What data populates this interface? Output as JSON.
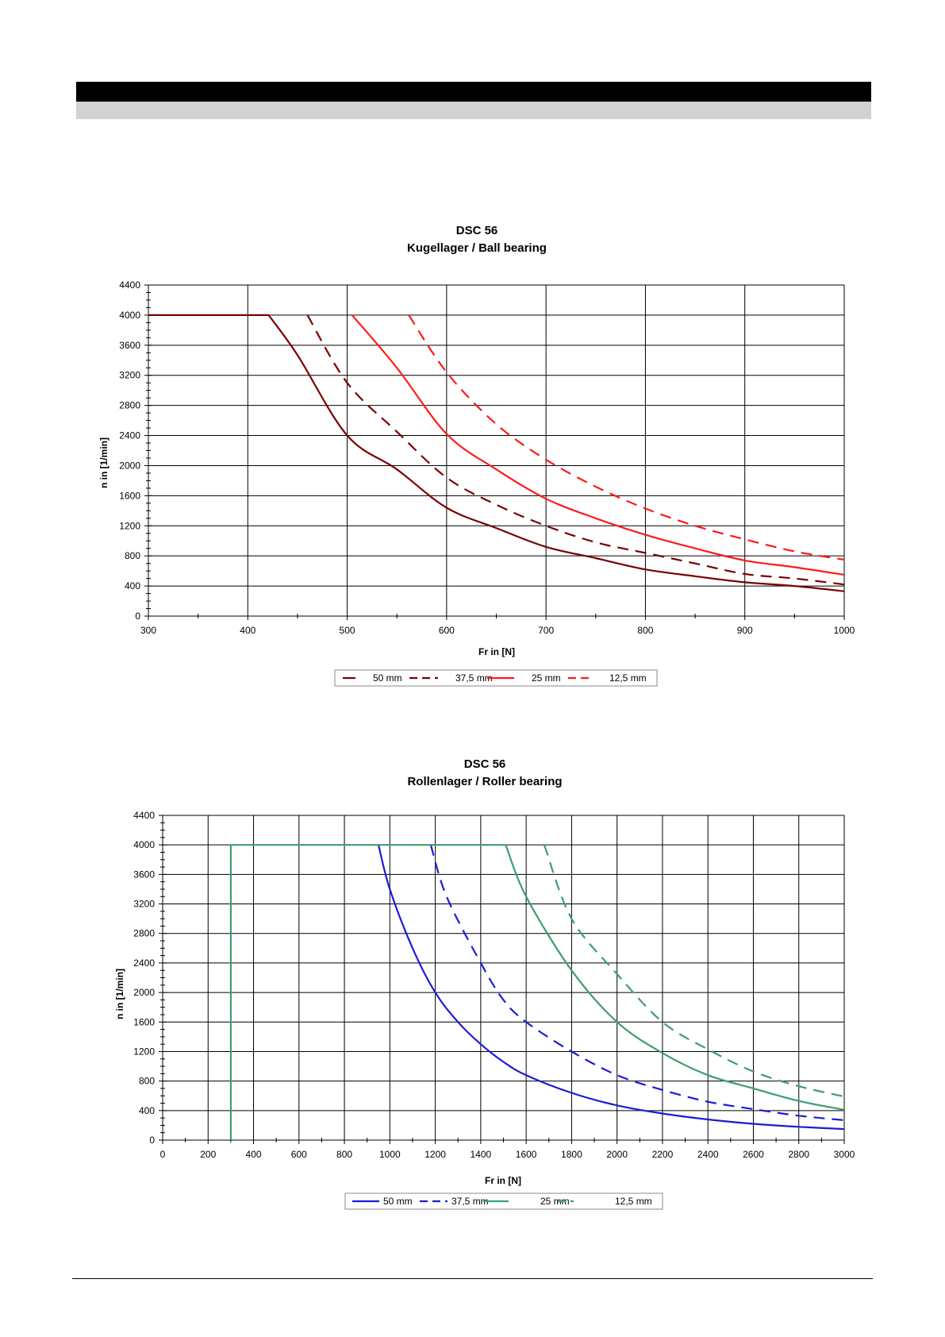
{
  "chart_data": [
    {
      "type": "line",
      "title": "DSC 56",
      "subtitle": "Kugellager / Ball bearing",
      "xlabel": "Fr in [N]",
      "ylabel": "n in [1/min]",
      "xlim": [
        300,
        1000
      ],
      "ylim": [
        0,
        4400
      ],
      "xticks": [
        300,
        400,
        500,
        600,
        700,
        800,
        900,
        1000
      ],
      "yticks": [
        0,
        400,
        800,
        1200,
        1600,
        2000,
        2400,
        2800,
        3200,
        3600,
        4000,
        4400
      ],
      "grid": true,
      "legend_position": "bottom",
      "series": [
        {
          "name": "50 mm",
          "color": "#7a0000",
          "dash": false,
          "points": [
            [
              300,
              4000
            ],
            [
              421,
              4000
            ],
            [
              450,
              3470
            ],
            [
              500,
              2400
            ],
            [
              550,
              1950
            ],
            [
              600,
              1440
            ],
            [
              650,
              1170
            ],
            [
              700,
              920
            ],
            [
              750,
              770
            ],
            [
              800,
              620
            ],
            [
              850,
              530
            ],
            [
              900,
              450
            ],
            [
              950,
              400
            ],
            [
              1000,
              330
            ]
          ]
        },
        {
          "name": "37,5 mm",
          "color": "#7a0000",
          "dash": true,
          "points": [
            [
              460,
              4000
            ],
            [
              500,
              3100
            ],
            [
              550,
              2450
            ],
            [
              600,
              1840
            ],
            [
              650,
              1480
            ],
            [
              700,
              1200
            ],
            [
              750,
              980
            ],
            [
              800,
              840
            ],
            [
              850,
              700
            ],
            [
              900,
              560
            ],
            [
              950,
              500
            ],
            [
              1000,
              420
            ]
          ]
        },
        {
          "name": "25 mm",
          "color": "#ff1a1a",
          "dash": false,
          "points": [
            [
              505,
              4000
            ],
            [
              550,
              3300
            ],
            [
              600,
              2420
            ],
            [
              650,
              1950
            ],
            [
              700,
              1560
            ],
            [
              750,
              1300
            ],
            [
              800,
              1080
            ],
            [
              850,
              900
            ],
            [
              900,
              740
            ],
            [
              950,
              650
            ],
            [
              1000,
              550
            ]
          ]
        },
        {
          "name": "12,5 mm",
          "color": "#ff1a1a",
          "dash": true,
          "points": [
            [
              562,
              4000
            ],
            [
              600,
              3240
            ],
            [
              650,
              2550
            ],
            [
              700,
              2080
            ],
            [
              750,
              1720
            ],
            [
              800,
              1430
            ],
            [
              850,
              1200
            ],
            [
              900,
              1020
            ],
            [
              950,
              860
            ],
            [
              1000,
              750
            ]
          ]
        }
      ]
    },
    {
      "type": "line",
      "title": "DSC 56",
      "subtitle": "Rollenlager / Roller bearing",
      "xlabel": "Fr in [N]",
      "ylabel": "n in [1/min]",
      "xlim": [
        0,
        3000
      ],
      "ylim": [
        0,
        4400
      ],
      "xticks": [
        0,
        200,
        400,
        600,
        800,
        1000,
        1200,
        1400,
        1600,
        1800,
        2000,
        2200,
        2400,
        2600,
        2800,
        3000
      ],
      "yticks": [
        0,
        400,
        800,
        1200,
        1600,
        2000,
        2400,
        2800,
        3200,
        3600,
        4000,
        4400
      ],
      "grid": true,
      "legend_position": "bottom",
      "series": [
        {
          "name": "50 mm",
          "color": "#1c1cd8",
          "dash": false,
          "points": [
            [
              950,
              4000
            ],
            [
              1000,
              3400
            ],
            [
              1100,
              2600
            ],
            [
              1200,
              2000
            ],
            [
              1300,
              1600
            ],
            [
              1400,
              1300
            ],
            [
              1500,
              1060
            ],
            [
              1600,
              880
            ],
            [
              1800,
              640
            ],
            [
              2000,
              470
            ],
            [
              2200,
              360
            ],
            [
              2400,
              280
            ],
            [
              2600,
              220
            ],
            [
              2800,
              180
            ],
            [
              3000,
              150
            ]
          ]
        },
        {
          "name": "37,5 mm",
          "color": "#1c1cd8",
          "dash": true,
          "points": [
            [
              1180,
              4000
            ],
            [
              1250,
              3300
            ],
            [
              1400,
              2400
            ],
            [
              1500,
              1900
            ],
            [
              1600,
              1600
            ],
            [
              1800,
              1200
            ],
            [
              2000,
              880
            ],
            [
              2200,
              680
            ],
            [
              2400,
              520
            ],
            [
              2600,
              420
            ],
            [
              2800,
              330
            ],
            [
              3000,
              270
            ]
          ]
        },
        {
          "name": "25 mm",
          "color": "#3f9e6e",
          "dash": false,
          "points": [
            [
              300,
              0
            ],
            [
              300,
              4000
            ],
            [
              1510,
              4000
            ],
            [
              1600,
              3300
            ],
            [
              1800,
              2300
            ],
            [
              2000,
              1600
            ],
            [
              2200,
              1180
            ],
            [
              2400,
              880
            ],
            [
              2600,
              700
            ],
            [
              2800,
              530
            ],
            [
              3000,
              410
            ]
          ]
        },
        {
          "name": "12,5 mm",
          "color": "#3f9e6e",
          "dash": true,
          "points": [
            [
              1680,
              4000
            ],
            [
              1800,
              3000
            ],
            [
              2000,
              2250
            ],
            [
              2200,
              1600
            ],
            [
              2400,
              1230
            ],
            [
              2600,
              930
            ],
            [
              2800,
              730
            ],
            [
              3000,
              590
            ]
          ]
        }
      ]
    }
  ]
}
